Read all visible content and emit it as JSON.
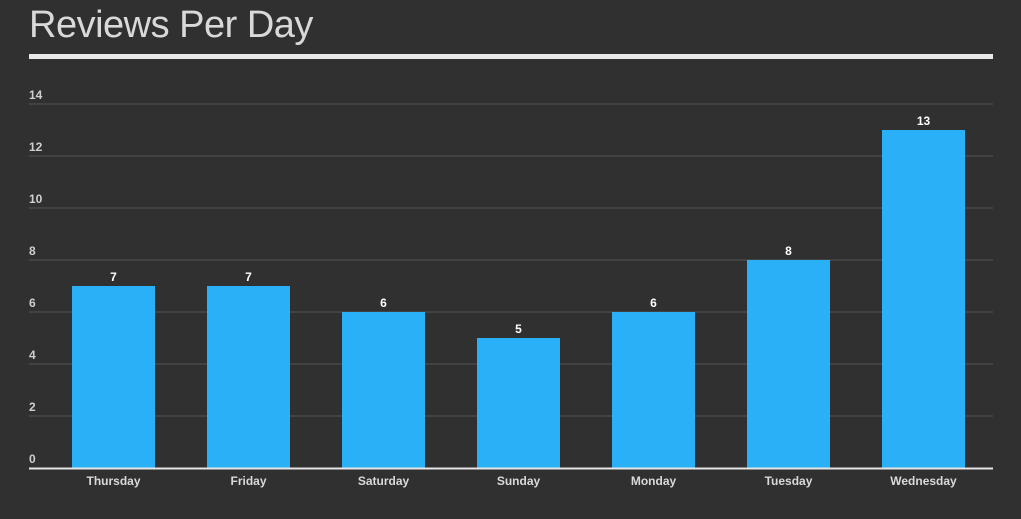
{
  "colors": {
    "background": "#303030",
    "bar": "#29b0f7",
    "grid": "#555555",
    "axis": "#e6e6e6"
  },
  "chart_data": {
    "type": "bar",
    "title": "Reviews Per Day",
    "categories": [
      "Thursday",
      "Friday",
      "Saturday",
      "Sunday",
      "Monday",
      "Tuesday",
      "Wednesday"
    ],
    "values": [
      7,
      7,
      6,
      5,
      6,
      8,
      13
    ],
    "ylim": [
      0,
      14
    ],
    "yticks": [
      0,
      2,
      4,
      6,
      8,
      10,
      12,
      14
    ],
    "data_labels": true,
    "grid": true,
    "legend": "none"
  }
}
